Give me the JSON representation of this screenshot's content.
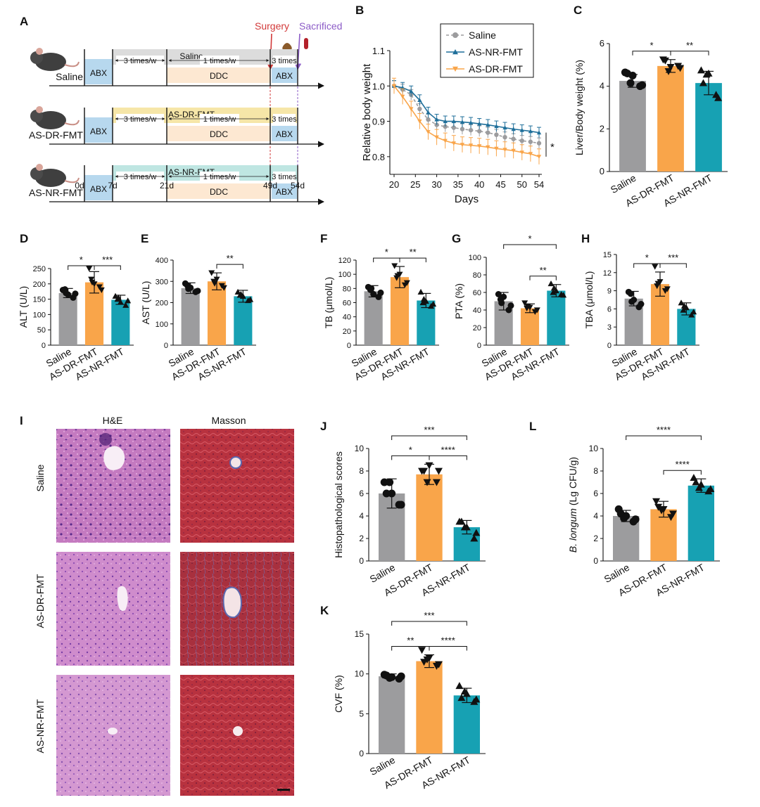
{
  "colors": {
    "saline": "#9c9c9e",
    "dr": "#f9a54a",
    "nr": "#17a1b3",
    "abx": "#b7d8ee",
    "ddc": "#fde8d2",
    "band_saline": "#dcdcdc",
    "band_dr": "#f6e6a8",
    "band_nr": "#bfe6e2",
    "surgery": "#d23a3a",
    "sacrificed": "#8c5cc7"
  },
  "panelA": {
    "letter": "A",
    "surgery": "Surgery",
    "sacrificed": "Sacrificed",
    "rows": [
      {
        "label": "Saline",
        "band": "Saline"
      },
      {
        "label": "AS-DR-FMT",
        "band": "AS-DR-FMT"
      },
      {
        "label": "AS-NR-FMT",
        "band": "AS-NR-FMT"
      }
    ],
    "abx": "ABX",
    "ddc": "DDC",
    "freq3": "3 times/w",
    "freq1": "1 times/w",
    "times3": "3 times",
    "days": [
      "0d",
      "7d",
      "21d",
      "49d",
      "54d"
    ]
  },
  "panelI": {
    "letter": "I",
    "cols": [
      "H&E",
      "Masson"
    ],
    "rows": [
      "Saline",
      "AS-DR-FMT",
      "AS-NR-FMT"
    ]
  },
  "chart_data": [
    {
      "id": "B",
      "type": "line",
      "letter": "B",
      "ylabel": "Relative body weight",
      "xlabel": "Days",
      "xlim": [
        20,
        54
      ],
      "ylim": [
        0.75,
        1.1
      ],
      "xticks": [
        20,
        25,
        30,
        35,
        40,
        45,
        50,
        54
      ],
      "yticks": [
        0.8,
        0.9,
        1.0,
        1.1
      ],
      "x": [
        20,
        22,
        24,
        26,
        28,
        30,
        32,
        34,
        36,
        38,
        40,
        42,
        44,
        46,
        48,
        50,
        52,
        54
      ],
      "series": [
        {
          "name": "Saline",
          "values": [
            1.0,
            0.99,
            0.975,
            0.935,
            0.905,
            0.89,
            0.885,
            0.882,
            0.878,
            0.875,
            0.872,
            0.868,
            0.862,
            0.855,
            0.85,
            0.845,
            0.842,
            0.838
          ],
          "err": 0.015
        },
        {
          "name": "AS-NR-FMT",
          "values": [
            1.0,
            0.995,
            0.985,
            0.96,
            0.925,
            0.905,
            0.9,
            0.9,
            0.898,
            0.896,
            0.893,
            0.89,
            0.886,
            0.882,
            0.878,
            0.875,
            0.872,
            0.868
          ],
          "err": 0.015
        },
        {
          "name": "AS-DR-FMT",
          "values": [
            1.0,
            0.97,
            0.935,
            0.9,
            0.87,
            0.855,
            0.845,
            0.838,
            0.834,
            0.832,
            0.83,
            0.827,
            0.823,
            0.82,
            0.817,
            0.812,
            0.808,
            0.8
          ],
          "err": 0.022
        }
      ],
      "star": "*"
    },
    {
      "id": "C",
      "type": "bar",
      "letter": "C",
      "ylabel": "Liver/Body weight (%)",
      "ylim": [
        0,
        6
      ],
      "yticks": [
        0,
        2,
        4,
        6
      ],
      "categories": [
        "Saline",
        "AS-DR-FMT",
        "AS-NR-FMT"
      ],
      "values": [
        4.25,
        4.95,
        4.15
      ],
      "err": [
        0.3,
        0.3,
        0.55
      ],
      "points": [
        [
          4.65,
          4.5,
          4.0,
          4.6,
          4.15,
          4.05
        ],
        [
          5.25,
          4.9,
          4.95,
          5.2,
          4.7,
          4.85
        ],
        [
          4.75,
          4.6,
          3.6,
          4.15,
          4.55,
          3.45
        ]
      ],
      "markers": [
        "circle",
        "triangle-down",
        "triangle-up"
      ],
      "sig": [
        {
          "a": 0,
          "b": 1,
          "label": "*"
        },
        {
          "a": 1,
          "b": 2,
          "label": "**"
        }
      ]
    },
    {
      "id": "D",
      "type": "bar",
      "letter": "D",
      "ylabel": "ALT (U/L)",
      "ylim": [
        0,
        250
      ],
      "yticks": [
        0,
        50,
        100,
        150,
        200,
        250
      ],
      "categories": [
        "Saline",
        "AS-DR-FMT",
        "AS-NR-FMT"
      ],
      "values": [
        170,
        205,
        148
      ],
      "err": [
        15,
        35,
        15
      ],
      "points": [
        [
          180,
          165,
          155,
          182,
          170,
          168
        ],
        [
          250,
          200,
          190,
          215,
          205,
          180
        ],
        [
          160,
          140,
          130,
          150,
          155,
          145
        ]
      ],
      "markers": [
        "circle",
        "triangle-down",
        "triangle-up"
      ],
      "sig": [
        {
          "a": 0,
          "b": 1,
          "label": "*"
        },
        {
          "a": 1,
          "b": 2,
          "label": "***"
        }
      ]
    },
    {
      "id": "E",
      "type": "bar",
      "letter": "E",
      "ylabel": "AST (U/L)",
      "ylim": [
        0,
        400
      ],
      "yticks": [
        0,
        100,
        200,
        300,
        400
      ],
      "categories": [
        "Saline",
        "AS-DR-FMT",
        "AS-NR-FMT"
      ],
      "values": [
        268,
        300,
        230
      ],
      "err": [
        25,
        40,
        28
      ],
      "points": [
        [
          290,
          270,
          250,
          280,
          265,
          255
        ],
        [
          340,
          310,
          280,
          300,
          290,
          270
        ],
        [
          250,
          230,
          210,
          235,
          240,
          215
        ]
      ],
      "markers": [
        "circle",
        "triangle-down",
        "triangle-up"
      ],
      "sig": [
        {
          "a": 1,
          "b": 2,
          "label": "**"
        }
      ]
    },
    {
      "id": "F",
      "type": "bar",
      "letter": "F",
      "ylabel": "TB (μmol/L)",
      "ylim": [
        0,
        120
      ],
      "yticks": [
        0,
        20,
        40,
        60,
        80,
        100,
        120
      ],
      "categories": [
        "Saline",
        "AS-DR-FMT",
        "AS-NR-FMT"
      ],
      "values": [
        76,
        96,
        63
      ],
      "err": [
        8,
        15,
        10
      ],
      "points": [
        [
          82,
          72,
          68,
          78,
          80,
          74
        ],
        [
          112,
          100,
          85,
          95,
          98,
          88
        ],
        [
          75,
          62,
          55,
          60,
          65,
          58
        ]
      ],
      "markers": [
        "circle",
        "triangle-down",
        "triangle-up"
      ],
      "sig": [
        {
          "a": 0,
          "b": 1,
          "label": "*"
        },
        {
          "a": 1,
          "b": 2,
          "label": "**"
        }
      ]
    },
    {
      "id": "G",
      "type": "bar",
      "letter": "G",
      "ylabel": "PTA (%)",
      "ylim": [
        0,
        100
      ],
      "yticks": [
        0,
        20,
        40,
        60,
        80,
        100
      ],
      "categories": [
        "Saline",
        "AS-DR-FMT",
        "AS-NR-FMT"
      ],
      "values": [
        50,
        42,
        62
      ],
      "err": [
        10,
        5,
        7
      ],
      "points": [
        [
          58,
          55,
          40,
          52,
          48,
          45
        ],
        [
          48,
          43,
          38,
          42,
          44,
          40
        ],
        [
          70,
          62,
          58,
          60,
          65,
          57
        ]
      ],
      "markers": [
        "circle",
        "triangle-down",
        "triangle-up"
      ],
      "sig": [
        {
          "a": 0,
          "b": 2,
          "label": "*",
          "top": true
        },
        {
          "a": 1,
          "b": 2,
          "label": "**"
        }
      ]
    },
    {
      "id": "H",
      "type": "bar",
      "letter": "H",
      "ylabel": "TBA (μmol/L)",
      "ylim": [
        0,
        15
      ],
      "yticks": [
        0,
        3,
        6,
        9,
        12,
        15
      ],
      "categories": [
        "Saline",
        "AS-DR-FMT",
        "AS-NR-FMT"
      ],
      "values": [
        7.7,
        10.1,
        6.0
      ],
      "err": [
        1.2,
        2.0,
        1.0
      ],
      "points": [
        [
          8.8,
          7.5,
          6.3,
          8.5,
          7.2,
          6.8
        ],
        [
          13.0,
          10.5,
          9.0,
          9.8,
          10.2,
          9.3
        ],
        [
          7.0,
          6.2,
          5.0,
          5.8,
          6.5,
          5.5
        ]
      ],
      "markers": [
        "circle",
        "triangle-down",
        "triangle-up"
      ],
      "sig": [
        {
          "a": 0,
          "b": 1,
          "label": "*"
        },
        {
          "a": 1,
          "b": 2,
          "label": "***"
        }
      ]
    },
    {
      "id": "J",
      "type": "bar",
      "letter": "J",
      "ylabel": "Histopathological scores",
      "ylim": [
        0,
        10
      ],
      "yticks": [
        0,
        2,
        4,
        6,
        8,
        10
      ],
      "categories": [
        "Saline",
        "AS-DR-FMT",
        "AS-NR-FMT"
      ],
      "values": [
        6.0,
        7.7,
        3.0
      ],
      "err": [
        1.3,
        0.9,
        0.6
      ],
      "points": [
        [
          7.0,
          6.0,
          5.0,
          6.0,
          7.0,
          5.0
        ],
        [
          8.0,
          8.5,
          7.0,
          8.0,
          7.0,
          8.0
        ],
        [
          3.5,
          3.0,
          2.0,
          3.5,
          3.0,
          2.5
        ]
      ],
      "markers": [
        "circle",
        "triangle-down",
        "triangle-up"
      ],
      "sig": [
        {
          "a": 0,
          "b": 2,
          "label": "***",
          "top": true
        },
        {
          "a": 0,
          "b": 1,
          "label": "*"
        },
        {
          "a": 1,
          "b": 2,
          "label": "****"
        }
      ]
    },
    {
      "id": "L",
      "type": "bar",
      "letter": "L",
      "ylabel": "B. longum (Lg CFU/g)",
      "ylim": [
        0,
        10
      ],
      "yticks": [
        0,
        2,
        4,
        6,
        8,
        10
      ],
      "categories": [
        "Saline",
        "AS-DR-FMT",
        "AS-NR-FMT"
      ],
      "values": [
        4.0,
        4.6,
        6.7
      ],
      "err": [
        0.5,
        0.7,
        0.6
      ],
      "points": [
        [
          4.6,
          4.0,
          3.5,
          4.2,
          3.8,
          3.7
        ],
        [
          5.3,
          4.6,
          3.9,
          4.8,
          4.5,
          4.2
        ],
        [
          7.4,
          6.8,
          6.2,
          7.0,
          6.5,
          6.4
        ]
      ],
      "markers": [
        "circle",
        "triangle-down",
        "triangle-up"
      ],
      "sig": [
        {
          "a": 0,
          "b": 2,
          "label": "****",
          "top": true
        },
        {
          "a": 1,
          "b": 2,
          "label": "****"
        }
      ]
    },
    {
      "id": "K",
      "type": "bar",
      "letter": "K",
      "ylabel": "CVF (%)",
      "ylim": [
        0,
        15
      ],
      "yticks": [
        0,
        5,
        10,
        15
      ],
      "categories": [
        "Saline",
        "AS-DR-FMT",
        "AS-NR-FMT"
      ],
      "values": [
        9.7,
        11.6,
        7.3
      ],
      "err": [
        0.3,
        0.8,
        0.9
      ],
      "points": [
        [
          9.9,
          9.6,
          9.4,
          9.8,
          9.5,
          9.7
        ],
        [
          13.0,
          12.0,
          11.0,
          11.5,
          11.8,
          11.2
        ],
        [
          8.5,
          7.5,
          6.5,
          7.0,
          7.8,
          6.8
        ]
      ],
      "markers": [
        "circle",
        "triangle-down",
        "triangle-up"
      ],
      "sig": [
        {
          "a": 0,
          "b": 2,
          "label": "***",
          "top": true
        },
        {
          "a": 0,
          "b": 1,
          "label": "**"
        },
        {
          "a": 1,
          "b": 2,
          "label": "****"
        }
      ]
    }
  ]
}
